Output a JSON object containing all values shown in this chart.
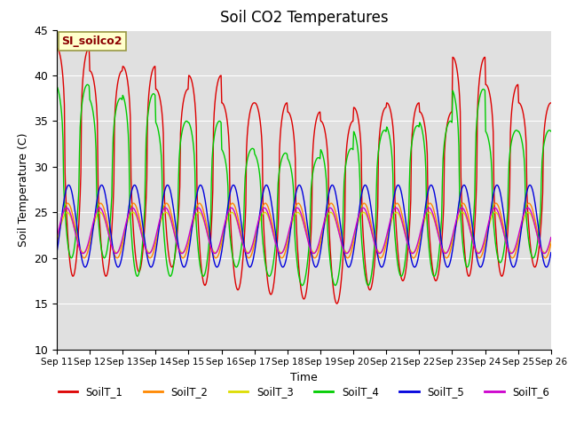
{
  "title": "Soil CO2 Temperatures",
  "xlabel": "Time",
  "ylabel": "Soil Temperature (C)",
  "ylim": [
    10,
    45
  ],
  "yticks": [
    10,
    15,
    20,
    25,
    30,
    35,
    40,
    45
  ],
  "annotation": "SI_soilco2",
  "legend_labels": [
    "SoilT_1",
    "SoilT_2",
    "SoilT_3",
    "SoilT_4",
    "SoilT_5",
    "SoilT_6"
  ],
  "colors": [
    "#dd0000",
    "#ff8800",
    "#dddd00",
    "#00cc00",
    "#0000dd",
    "#cc00cc"
  ],
  "xtick_labels": [
    "Sep 11",
    "Sep 12",
    "Sep 13",
    "Sep 14",
    "Sep 15",
    "Sep 16",
    "Sep 17",
    "Sep 18",
    "Sep 19",
    "Sep 20",
    "Sep 21",
    "Sep 22",
    "Sep 23",
    "Sep 24",
    "Sep 25",
    "Sep 26"
  ],
  "n_days": 15,
  "background_color": "#e0e0e0",
  "grid_color": "#ffffff"
}
